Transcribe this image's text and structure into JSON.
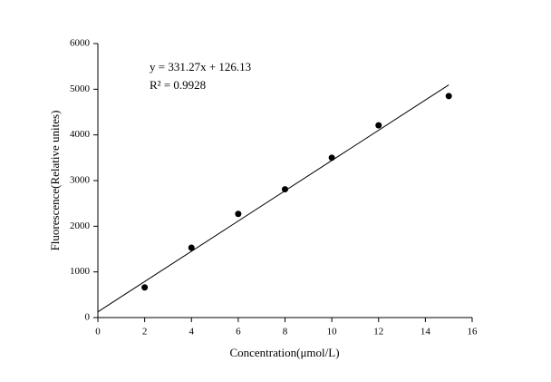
{
  "chart_data": {
    "type": "scatter",
    "x_label": "Concentration(μmol/L)",
    "y_label": "Fluorescence(Relative unites)",
    "x": [
      2,
      4,
      6,
      8,
      10,
      12,
      15
    ],
    "values": [
      660,
      1530,
      2270,
      2810,
      3500,
      4210,
      4850
    ],
    "color": "#000000",
    "fit": {
      "slope": 331.27,
      "intercept": 126.13,
      "xlim": [
        0,
        15
      ]
    },
    "equation": "y = 331.27x + 126.13",
    "r2_label": "R² = 0.9928",
    "xlim": [
      0,
      16
    ],
    "xticks": [
      0,
      2,
      4,
      6,
      8,
      10,
      12,
      14,
      16
    ],
    "ylim": [
      0,
      6000
    ],
    "yticks": [
      0,
      1000,
      2000,
      3000,
      4000,
      5000,
      6000
    ]
  }
}
